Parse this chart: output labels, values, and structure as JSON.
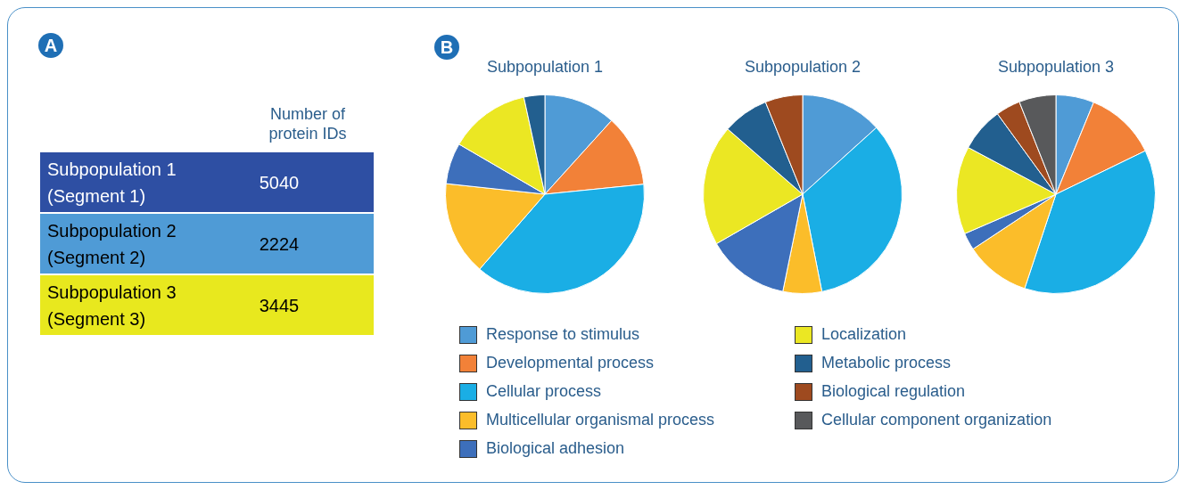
{
  "chart_data": [
    {
      "type": "other",
      "annotations": [
        "A"
      ],
      "ylabel": "Number of protein IDs",
      "categories": [
        "Subpopulation 1 (Segment 1)",
        "Subpopulation 2 (Segment 2)",
        "Subpopulation 3 (Segment 3)"
      ],
      "values": [
        5040,
        2224,
        3445
      ],
      "colors": [
        "#2e4fa3",
        "#4f9bd6",
        "#e8e81e"
      ],
      "data_labels": true
    },
    {
      "type": "pie",
      "title": "Subpopulation 1",
      "annotations": [
        "B"
      ],
      "legend": "bottom",
      "categories": [
        "Response to stimulus",
        "Developmental process",
        "Cellular process",
        "Multicellular organismal process",
        "Biological adhesion",
        "Localization",
        "Metabolic process"
      ],
      "values": [
        11.7,
        11.7,
        38.0,
        15.3,
        6.7,
        13.2,
        3.4
      ],
      "colors": [
        "#4f9bd6",
        "#f28138",
        "#1aaee5",
        "#fbbd2a",
        "#3d6fbb",
        "#ebe723",
        "#225f8f"
      ]
    },
    {
      "type": "pie",
      "title": "Subpopulation 2",
      "legend": "bottom",
      "categories": [
        null,
        null,
        null,
        null,
        null,
        null,
        "Biological regulation"
      ],
      "values": [
        13.3,
        33.6,
        6.3,
        13.5,
        19.7,
        7.5,
        6.1
      ],
      "colors": [
        "#4f9bd6",
        "#1aaee5",
        "#fbbd2a",
        "#3d6fbb",
        "#ebe723",
        "#225f8f",
        "#9e4a1f"
      ]
    },
    {
      "type": "pie",
      "title": "Subpopulation 3",
      "legend": "bottom",
      "categories": [
        null,
        null,
        null,
        null,
        null,
        null,
        null,
        null,
        "Cellular component organization"
      ],
      "values": [
        6.2,
        11.6,
        37.3,
        10.6,
        2.8,
        14.3,
        7.2,
        4.0,
        6.0
      ],
      "colors": [
        "#4f9bd6",
        "#f28138",
        "#1aaee5",
        "#fbbd2a",
        "#3d6fbb",
        "#ebe723",
        "#225f8f",
        "#9e4a1f",
        "#58595b"
      ]
    }
  ]
}
